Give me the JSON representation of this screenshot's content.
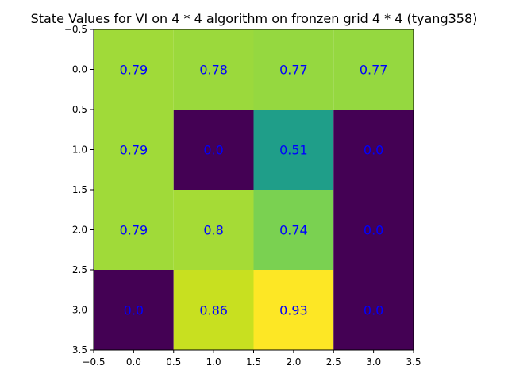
{
  "chart_data": {
    "type": "heatmap",
    "title": "State Values for VI on 4 * 4 algorithm on fronzen grid 4 * 4 (tyang358)",
    "xlabel": "",
    "ylabel": "",
    "xlim": [
      -0.5,
      3.5
    ],
    "ylim": [
      3.5,
      -0.5
    ],
    "x_ticks": [
      "−0.5",
      "0.0",
      "0.5",
      "1.0",
      "1.5",
      "2.0",
      "2.5",
      "3.0",
      "3.5"
    ],
    "y_ticks": [
      "−0.5",
      "0.0",
      "0.5",
      "1.0",
      "1.5",
      "2.0",
      "2.5",
      "3.0",
      "3.5"
    ],
    "grid": false,
    "colormap": "viridis",
    "values": [
      [
        0.79,
        0.78,
        0.77,
        0.77
      ],
      [
        0.79,
        0.0,
        0.51,
        0.0
      ],
      [
        0.79,
        0.8,
        0.74,
        0.0
      ],
      [
        0.0,
        0.86,
        0.93,
        0.0
      ]
    ],
    "labels": [
      [
        "0.79",
        "0.78",
        "0.77",
        "0.77"
      ],
      [
        "0.79",
        "0.0",
        "0.51",
        "0.0"
      ],
      [
        "0.79",
        "0.8",
        "0.74",
        "0.0"
      ],
      [
        "0.0",
        "0.86",
        "0.93",
        "0.0"
      ]
    ],
    "cell_colors": [
      [
        "#a0da39",
        "#9bd93c",
        "#95d840",
        "#95d840"
      ],
      [
        "#a0da39",
        "#440154",
        "#1f9e89",
        "#440154"
      ],
      [
        "#a0da39",
        "#a5db36",
        "#7ad151",
        "#440154"
      ],
      [
        "#440154",
        "#c8e020",
        "#fde725",
        "#440154"
      ]
    ],
    "label_color": "#0000ff"
  }
}
